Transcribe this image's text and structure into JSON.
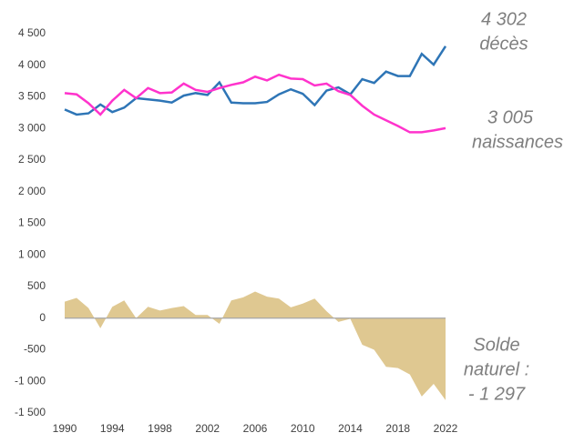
{
  "chart_data": {
    "type": "line",
    "x": [
      1990,
      1991,
      1992,
      1993,
      1994,
      1995,
      1996,
      1997,
      1998,
      1999,
      2000,
      2001,
      2002,
      2003,
      2004,
      2005,
      2006,
      2007,
      2008,
      2009,
      2010,
      2011,
      2012,
      2013,
      2014,
      2015,
      2016,
      2017,
      2018,
      2019,
      2020,
      2021,
      2022
    ],
    "series": [
      {
        "name": "décès",
        "color": "#2e75b6",
        "kind": "line",
        "values": [
          3300,
          3220,
          3240,
          3380,
          3260,
          3330,
          3480,
          3460,
          3440,
          3410,
          3520,
          3560,
          3530,
          3730,
          3410,
          3400,
          3400,
          3420,
          3540,
          3620,
          3550,
          3370,
          3600,
          3650,
          3540,
          3780,
          3720,
          3900,
          3830,
          3830,
          4180,
          4010,
          4302
        ]
      },
      {
        "name": "naissances",
        "color": "#ff33cc",
        "kind": "line",
        "values": [
          3560,
          3540,
          3400,
          3220,
          3440,
          3610,
          3480,
          3640,
          3560,
          3570,
          3710,
          3610,
          3580,
          3640,
          3690,
          3730,
          3820,
          3760,
          3850,
          3790,
          3780,
          3680,
          3710,
          3590,
          3530,
          3360,
          3220,
          3130,
          3040,
          2940,
          2940,
          2970,
          3005
        ]
      },
      {
        "name": "solde naturel",
        "color": "#dfc891",
        "kind": "area",
        "values": [
          260,
          320,
          160,
          -160,
          180,
          280,
          0,
          180,
          120,
          160,
          190,
          50,
          50,
          -90,
          280,
          330,
          420,
          340,
          310,
          170,
          230,
          310,
          110,
          -60,
          -10,
          -420,
          -500,
          -770,
          -790,
          -890,
          -1240,
          -1040,
          -1297
        ]
      }
    ],
    "xlim": [
      1990,
      2022
    ],
    "xticks": [
      1990,
      1994,
      1998,
      2002,
      2006,
      2010,
      2014,
      2018,
      2022
    ],
    "ylim": [
      -1500,
      4500
    ],
    "yticks": [
      {
        "value": -1500,
        "label": "-1 500"
      },
      {
        "value": -1000,
        "label": "-1 000"
      },
      -500,
      0,
      500,
      {
        "value": 1000,
        "label": "1 000"
      },
      {
        "value": 1500,
        "label": "1 500"
      },
      {
        "value": 2000,
        "label": "2 000"
      },
      {
        "value": 2500,
        "label": "2 500"
      },
      {
        "value": 3000,
        "label": "3 000"
      },
      {
        "value": 3500,
        "label": "3 500"
      },
      {
        "value": 4000,
        "label": "4 000"
      },
      {
        "value": 4500,
        "label": "4 500"
      }
    ],
    "annotations": [
      {
        "lines": [
          "4 302",
          "décès"
        ]
      },
      {
        "lines": [
          "3 005",
          "naissances"
        ]
      },
      {
        "lines": [
          "Solde",
          "naturel :",
          "- 1 297"
        ]
      }
    ]
  }
}
